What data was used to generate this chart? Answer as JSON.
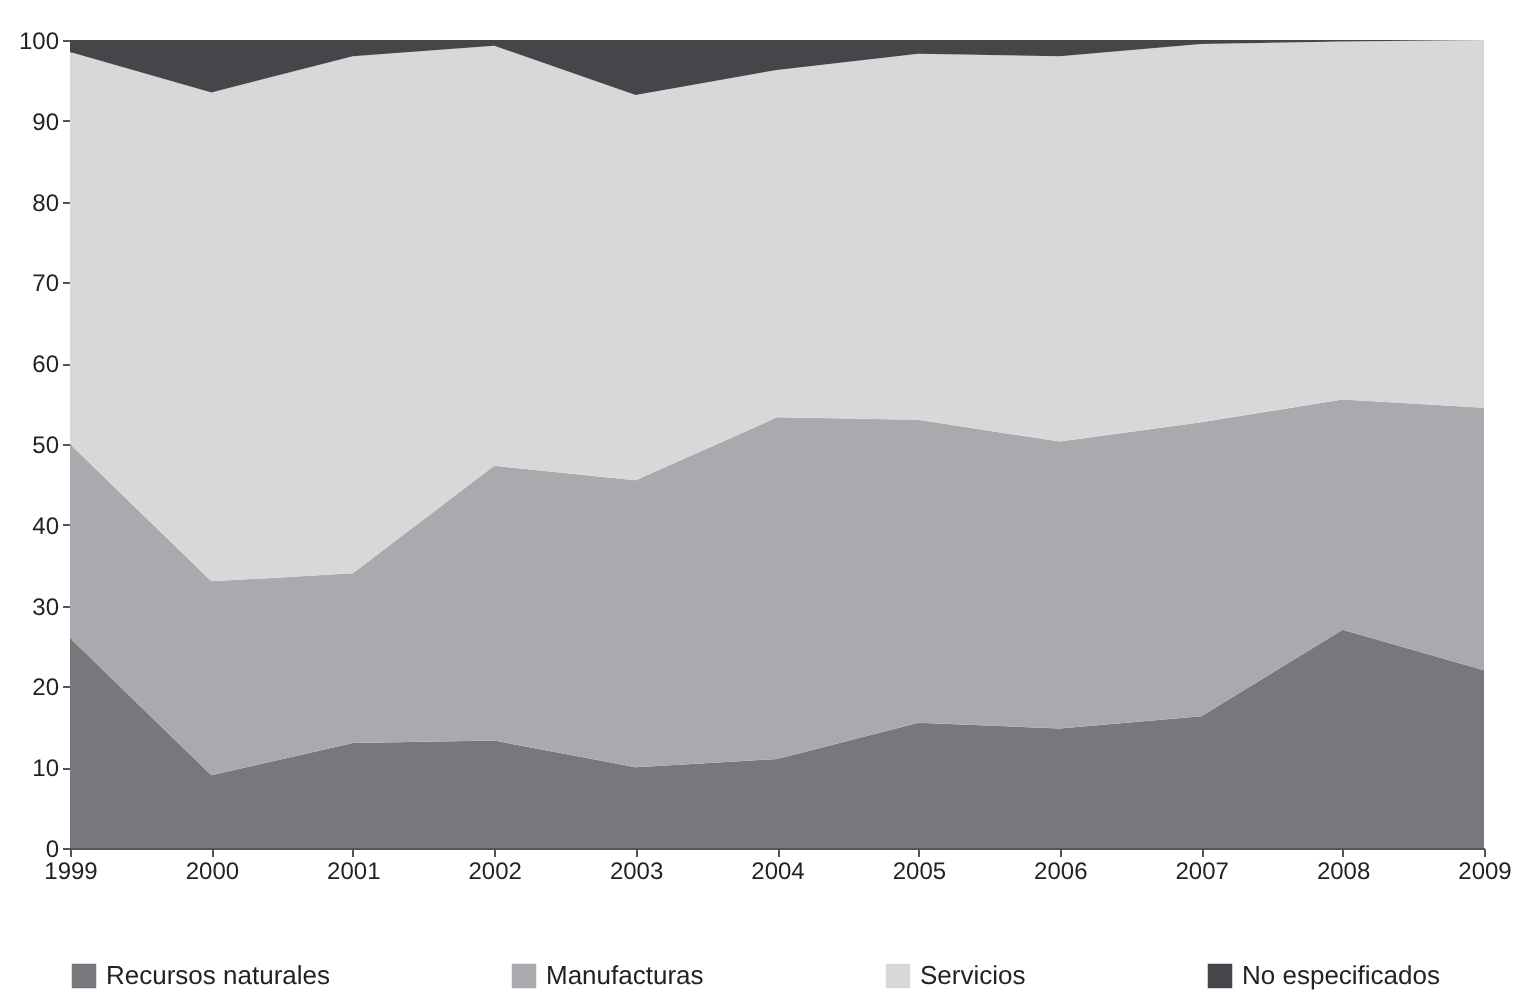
{
  "chart_data": {
    "type": "area",
    "stacked": true,
    "x": [
      1999,
      2000,
      2001,
      2002,
      2003,
      2004,
      2005,
      2006,
      2007,
      2008,
      2009
    ],
    "xlim": [
      1999,
      2009
    ],
    "xticks": [
      1999,
      2000,
      2001,
      2002,
      2003,
      2004,
      2005,
      2006,
      2007,
      2008,
      2009
    ],
    "ylim": [
      0,
      100
    ],
    "yticks": [
      0,
      10,
      20,
      30,
      40,
      50,
      60,
      70,
      80,
      90,
      100
    ],
    "grid": false,
    "legend": "bottom",
    "series": [
      {
        "name": "Recursos naturales",
        "color": "#77787c",
        "values": [
          26,
          9,
          13,
          13.3,
          10,
          11,
          15.5,
          14.8,
          16.3,
          27,
          22
        ]
      },
      {
        "name": "Manufacturas",
        "color": "#a9aaad",
        "values": [
          24,
          24,
          21,
          34,
          35.5,
          42.3,
          37.5,
          35.5,
          36.4,
          28.5,
          32.5
        ]
      },
      {
        "name": "Servicios",
        "color": "#d8d8d8",
        "values": [
          48.5,
          60.5,
          64,
          52,
          47.7,
          43,
          45.3,
          47.7,
          46.8,
          44.3,
          45.5
        ]
      },
      {
        "name": "No especificados",
        "color": "#45464a",
        "values": [
          1.5,
          6.5,
          2,
          0.7,
          6.8,
          3.7,
          1.7,
          2,
          0.5,
          0.2,
          0
        ]
      }
    ]
  }
}
